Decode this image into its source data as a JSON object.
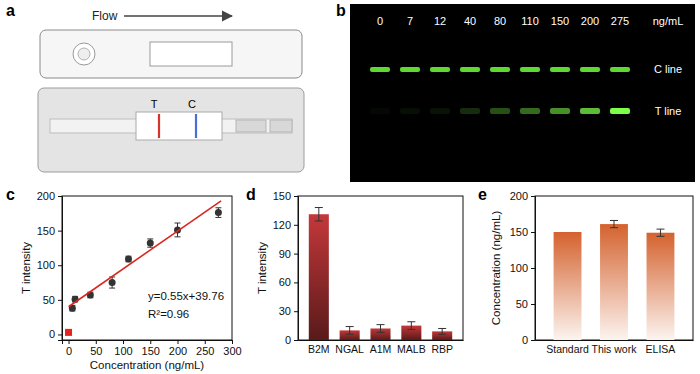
{
  "panel_a": {
    "panel_label": "a",
    "flow_label": "Flow",
    "line_labels": [
      "T",
      "C"
    ]
  },
  "panel_b": {
    "panel_label": "b",
    "concentrations": [
      0,
      7,
      12,
      40,
      80,
      110,
      150,
      200,
      275
    ],
    "unit": "ng/mL",
    "row_labels": [
      "C line",
      "T line"
    ]
  },
  "chart_data": [
    {
      "type": "scatter",
      "panel_label": "c",
      "x_label": "Concentration (ng/mL)",
      "y_label": "T intensity",
      "xlim": [
        -12,
        300
      ],
      "ylim": [
        -8,
        200
      ],
      "xticks": [
        0,
        50,
        100,
        150,
        200,
        250,
        300
      ],
      "yticks": [
        0,
        50,
        100,
        150,
        200
      ],
      "annotations": [
        "y=0.55x+39.76",
        "R²=0.96"
      ],
      "series": [
        {
          "type": "scatter",
          "marker": "square",
          "color": "#e8221c",
          "x": [
            0
          ],
          "values": [
            3
          ]
        },
        {
          "type": "scatter",
          "marker": "circle",
          "color": "#333333",
          "x": [
            7,
            12,
            40,
            80,
            110,
            150,
            200,
            275
          ],
          "values": [
            38,
            51,
            57,
            75,
            109,
            132,
            151,
            176
          ],
          "errors": [
            4,
            4,
            4,
            8,
            4,
            6,
            10,
            7
          ]
        },
        {
          "type": "line",
          "line_style": "solid",
          "color": "#d9281f",
          "x": [
            0,
            280
          ],
          "values": [
            40,
            193
          ]
        }
      ]
    },
    {
      "type": "bar",
      "panel_label": "d",
      "y_label": "T intensity",
      "categories": [
        "B2M",
        "NGAL",
        "A1M",
        "MALB",
        "RBP"
      ],
      "values": [
        131,
        10,
        12,
        15,
        9
      ],
      "errors": [
        7,
        4,
        4,
        4,
        3
      ],
      "color": "#c4383a",
      "ylim": [
        0,
        150
      ],
      "yticks": [
        0,
        30,
        60,
        90,
        120,
        150
      ]
    },
    {
      "type": "bar",
      "panel_label": "e",
      "y_label": "Concentration (ng/mL)",
      "categories": [
        "Standard",
        "This work",
        "ELISA"
      ],
      "values": [
        150,
        161,
        149
      ],
      "errors": [
        null,
        5,
        5
      ],
      "color": "#d4622e",
      "ylim": [
        0,
        200
      ],
      "yticks": [
        0,
        50,
        100,
        150,
        200
      ]
    }
  ]
}
